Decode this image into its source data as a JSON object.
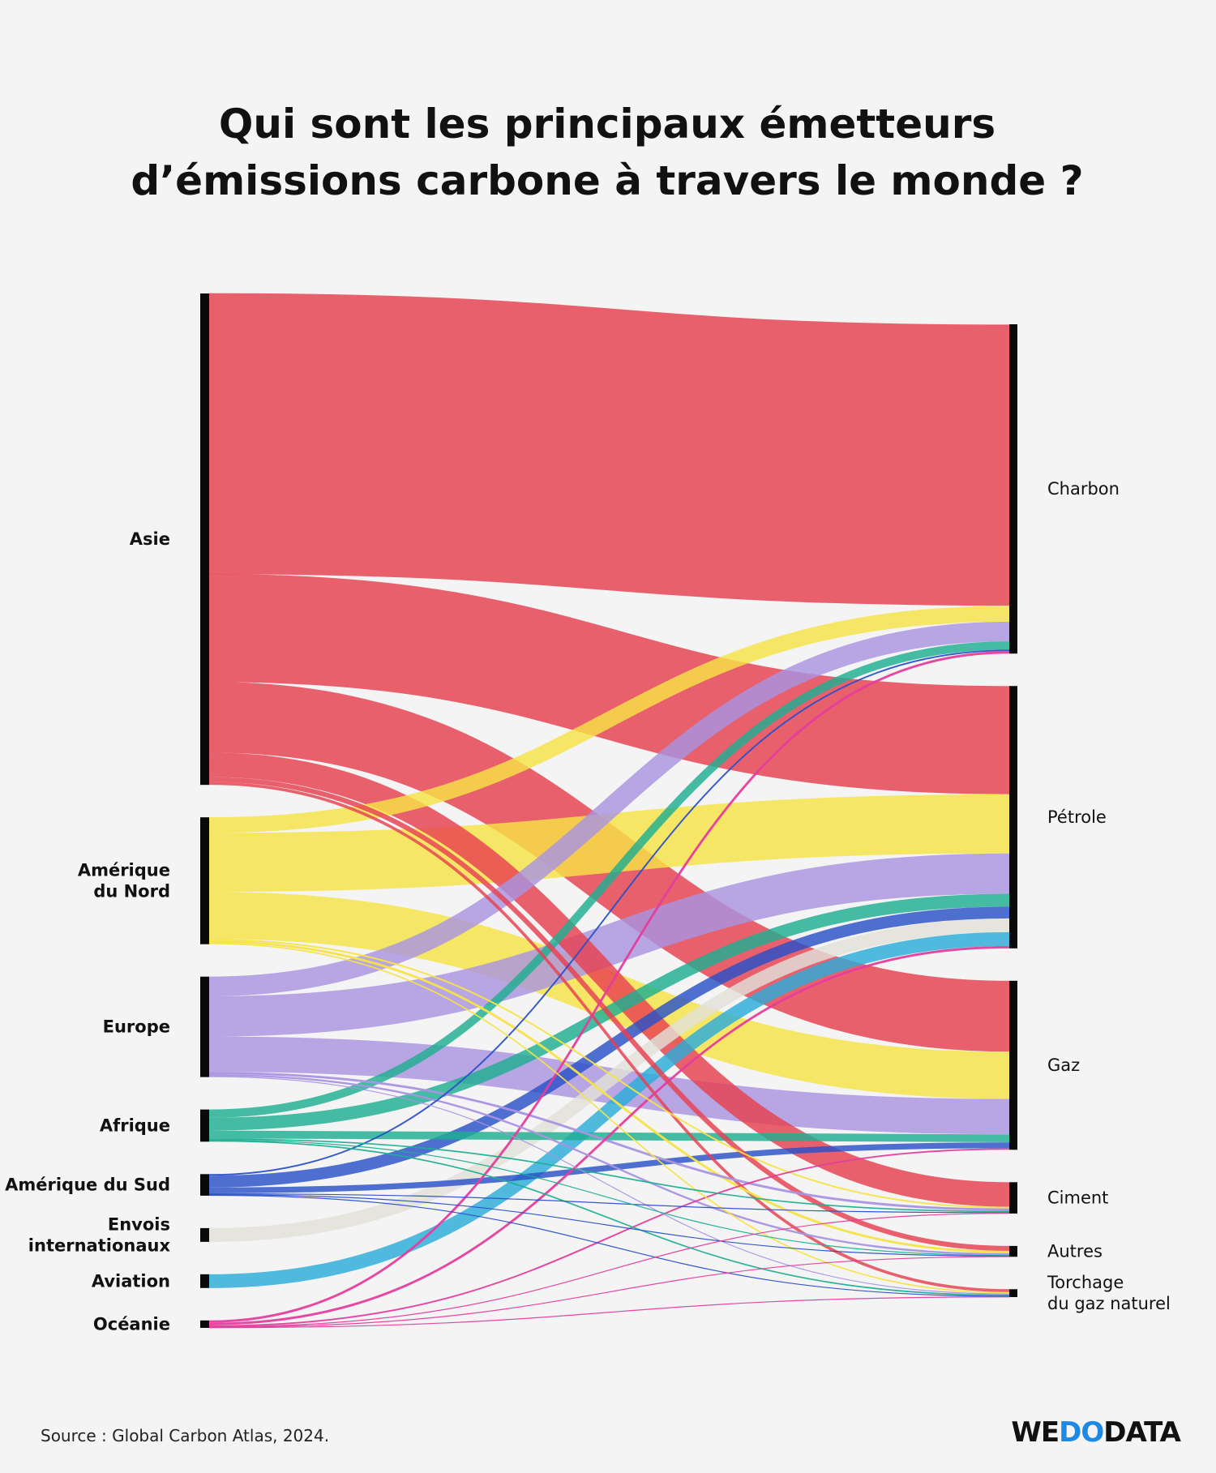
{
  "title": [
    "Qui sont les principaux émetteurs",
    "d’émissions carbone à travers le monde ?"
  ],
  "source": "Source : Global Carbon Atlas, 2024.",
  "logo": {
    "part1": "WE",
    "part2": "DO",
    "part3": "DATA",
    "accent": "#1e88e5"
  },
  "chart_data": {
    "type": "sankey",
    "sources": [
      {
        "id": "asie",
        "label": [
          "Asie"
        ],
        "color": "#e6404f"
      },
      {
        "id": "amn",
        "label": [
          "Amérique",
          "du Nord"
        ],
        "color": "#f6e346"
      },
      {
        "id": "eur",
        "label": [
          "Europe"
        ],
        "color": "#a994e0"
      },
      {
        "id": "afr",
        "label": [
          "Afrique"
        ],
        "color": "#1fae91"
      },
      {
        "id": "ams",
        "label": [
          "Amérique du Sud"
        ],
        "color": "#2a50c8"
      },
      {
        "id": "env",
        "label": [
          "Envois",
          "internationaux"
        ],
        "color": "#e2e0d8"
      },
      {
        "id": "avi",
        "label": [
          "Aviation"
        ],
        "color": "#2cacd9"
      },
      {
        "id": "oce",
        "label": [
          "Océanie"
        ],
        "color": "#e53d9c"
      }
    ],
    "targets": [
      {
        "id": "charbon",
        "label": [
          "Charbon"
        ]
      },
      {
        "id": "petrole",
        "label": [
          "Pétrole"
        ]
      },
      {
        "id": "gaz",
        "label": [
          "Gaz"
        ]
      },
      {
        "id": "ciment",
        "label": [
          "Ciment"
        ]
      },
      {
        "id": "autres",
        "label": [
          "Autres"
        ]
      },
      {
        "id": "torchage",
        "label": [
          "Torchage",
          "du gaz naturel"
        ]
      }
    ],
    "flows": [
      {
        "source": "asie",
        "target": "charbon",
        "value": 14.3
      },
      {
        "source": "asie",
        "target": "petrole",
        "value": 5.5
      },
      {
        "source": "asie",
        "target": "gaz",
        "value": 3.6
      },
      {
        "source": "asie",
        "target": "ciment",
        "value": 1.25
      },
      {
        "source": "asie",
        "target": "autres",
        "value": 0.25
      },
      {
        "source": "asie",
        "target": "torchage",
        "value": 0.15
      },
      {
        "source": "amn",
        "target": "charbon",
        "value": 0.8
      },
      {
        "source": "amn",
        "target": "petrole",
        "value": 3.0
      },
      {
        "source": "amn",
        "target": "gaz",
        "value": 2.4
      },
      {
        "source": "amn",
        "target": "ciment",
        "value": 0.08
      },
      {
        "source": "amn",
        "target": "autres",
        "value": 0.12
      },
      {
        "source": "amn",
        "target": "torchage",
        "value": 0.07
      },
      {
        "source": "eur",
        "target": "charbon",
        "value": 1.0
      },
      {
        "source": "eur",
        "target": "petrole",
        "value": 2.05
      },
      {
        "source": "eur",
        "target": "gaz",
        "value": 1.8
      },
      {
        "source": "eur",
        "target": "ciment",
        "value": 0.12
      },
      {
        "source": "eur",
        "target": "autres",
        "value": 0.1
      },
      {
        "source": "eur",
        "target": "torchage",
        "value": 0.05
      },
      {
        "source": "afr",
        "target": "charbon",
        "value": 0.42
      },
      {
        "source": "afr",
        "target": "petrole",
        "value": 0.65
      },
      {
        "source": "afr",
        "target": "gaz",
        "value": 0.4
      },
      {
        "source": "afr",
        "target": "ciment",
        "value": 0.07
      },
      {
        "source": "afr",
        "target": "autres",
        "value": 0.03
      },
      {
        "source": "afr",
        "target": "torchage",
        "value": 0.07
      },
      {
        "source": "ams",
        "target": "charbon",
        "value": 0.08
      },
      {
        "source": "ams",
        "target": "petrole",
        "value": 0.6
      },
      {
        "source": "ams",
        "target": "gaz",
        "value": 0.3
      },
      {
        "source": "ams",
        "target": "ciment",
        "value": 0.05
      },
      {
        "source": "ams",
        "target": "autres",
        "value": 0.03
      },
      {
        "source": "ams",
        "target": "torchage",
        "value": 0.04
      },
      {
        "source": "env",
        "target": "petrole",
        "value": 0.7
      },
      {
        "source": "avi",
        "target": "petrole",
        "value": 0.7
      },
      {
        "source": "oce",
        "target": "charbon",
        "value": 0.12
      },
      {
        "source": "oce",
        "target": "petrole",
        "value": 0.12
      },
      {
        "source": "oce",
        "target": "gaz",
        "value": 0.08
      },
      {
        "source": "oce",
        "target": "ciment",
        "value": 0.02
      },
      {
        "source": "oce",
        "target": "autres",
        "value": 0.02
      },
      {
        "source": "oce",
        "target": "torchage",
        "value": 0.02
      }
    ]
  }
}
